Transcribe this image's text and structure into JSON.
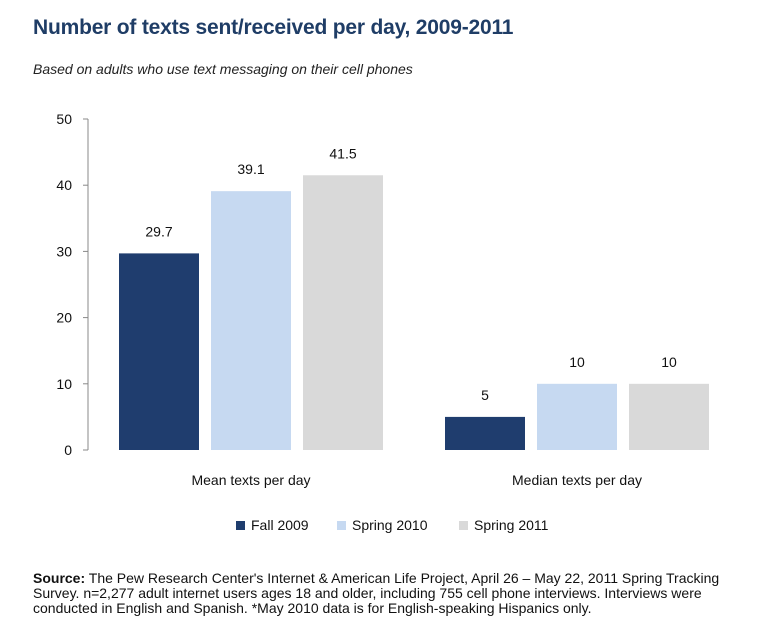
{
  "title": "Number of texts sent/received per day, 2009-2011",
  "subtitle": "Based on adults who use text messaging on their cell phones",
  "chart_data": {
    "type": "bar",
    "categories": [
      "Mean texts per day",
      "Median texts per day"
    ],
    "series": [
      {
        "name": "Fall 2009",
        "color": "#1f3d6e",
        "values": [
          29.7,
          5
        ]
      },
      {
        "name": "Spring 2010",
        "color": "#c6d9f1",
        "values": [
          39.1,
          10
        ]
      },
      {
        "name": "Spring 2011",
        "color": "#d9d9d9",
        "values": [
          41.5,
          10
        ]
      }
    ],
    "value_labels": [
      [
        "29.7",
        "5"
      ],
      [
        "39.1",
        "10"
      ],
      [
        "41.5",
        "10"
      ]
    ],
    "yticks": [
      "0",
      "10",
      "20",
      "30",
      "40",
      "50"
    ],
    "ylim": [
      0,
      50
    ],
    "legend_position": "bottom"
  },
  "source": {
    "label": "Source:",
    "text": " The Pew Research Center's Internet & American Life Project, April 26 – May 22, 2011 Spring Tracking Survey. n=2,277 adult internet users ages 18 and older, including 755 cell phone interviews. Interviews were conducted in English and Spanish. *May 2010 data is for English-speaking Hispanics only."
  }
}
